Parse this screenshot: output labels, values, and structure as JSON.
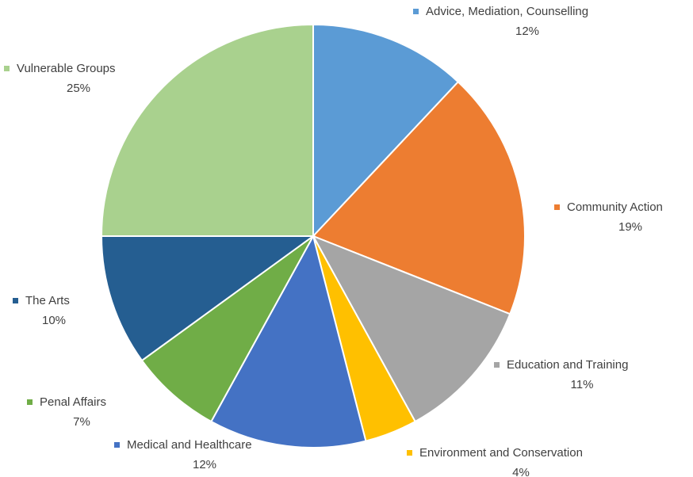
{
  "chart_data": {
    "type": "pie",
    "categories": [
      "Advice, Mediation, Counselling",
      "Community Action",
      "Education and Training",
      "Environment and Conservation",
      "Medical and Healthcare",
      "Penal Affairs",
      "The Arts",
      "Vulnerable Groups"
    ],
    "values": [
      12,
      19,
      11,
      4,
      12,
      7,
      10,
      25
    ],
    "value_labels": [
      "12%",
      "19%",
      "11%",
      "4%",
      "12%",
      "7%",
      "10%",
      "25%"
    ],
    "colors": [
      "#5b9bd5",
      "#ed7d31",
      "#a5a5a5",
      "#ffc000",
      "#4472c4",
      "#70ad47",
      "#255e91",
      "#a9d18e"
    ]
  }
}
